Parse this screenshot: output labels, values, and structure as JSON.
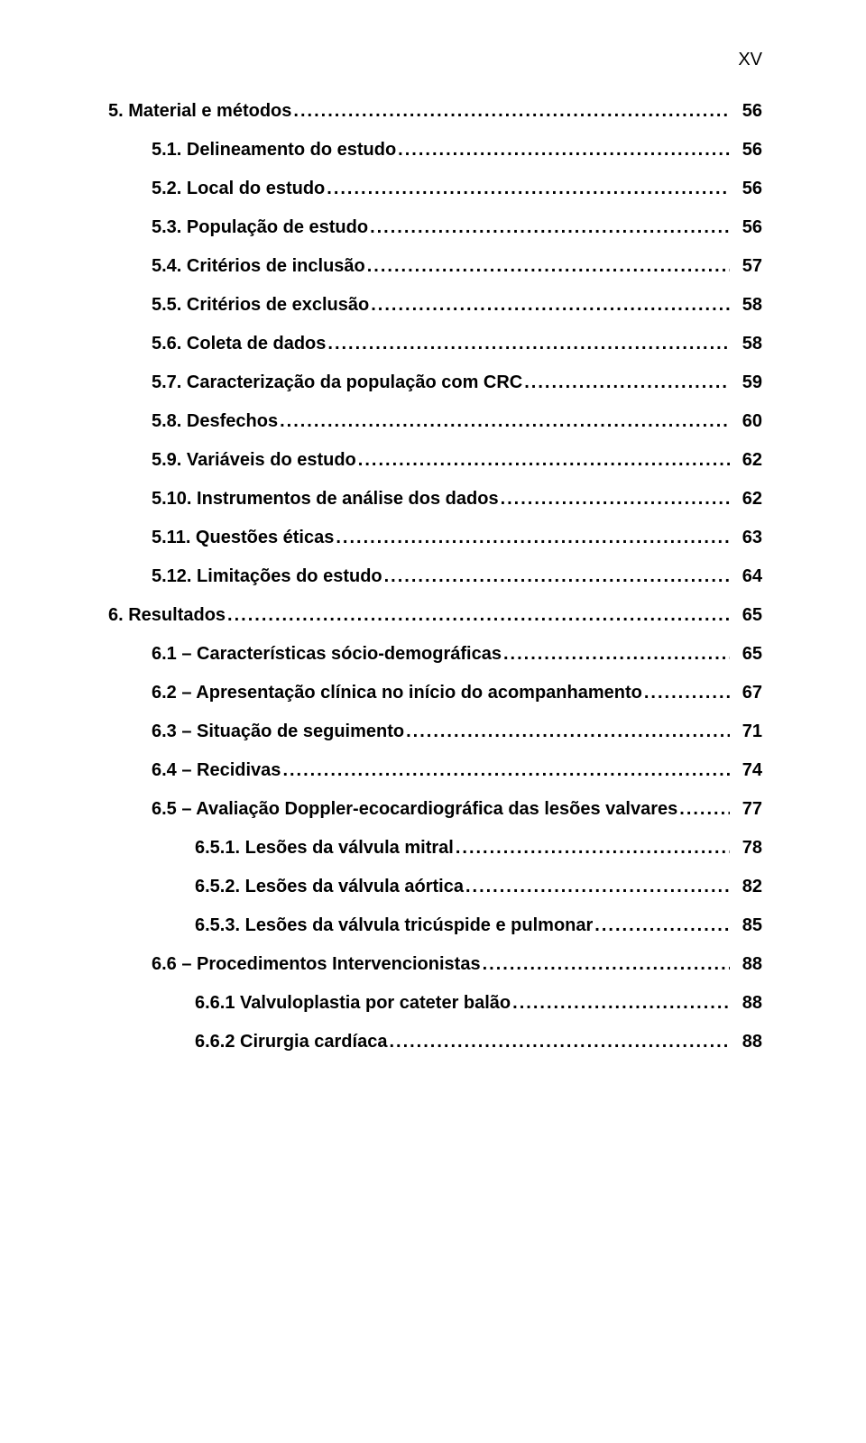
{
  "page_label": "XV",
  "typography": {
    "font_family": "Arial, Helvetica, sans-serif",
    "font_size_pt": 15,
    "font_weight": "bold",
    "color": "#000000",
    "background": "#ffffff"
  },
  "toc": [
    {
      "level": 0,
      "label": "5. Material e métodos",
      "page": "56"
    },
    {
      "level": 1,
      "label": "5.1. Delineamento do estudo",
      "page": "56"
    },
    {
      "level": 1,
      "label": "5.2. Local do estudo",
      "page": "56"
    },
    {
      "level": 1,
      "label": "5.3. População de estudo",
      "page": "56"
    },
    {
      "level": 1,
      "label": "5.4. Critérios de inclusão",
      "page": "57"
    },
    {
      "level": 1,
      "label": "5.5. Critérios de exclusão",
      "page": "58"
    },
    {
      "level": 1,
      "label": "5.6. Coleta de dados",
      "page": "58"
    },
    {
      "level": 1,
      "label": "5.7. Caracterização da população com CRC",
      "page": "59"
    },
    {
      "level": 1,
      "label": "5.8. Desfechos",
      "page": "60"
    },
    {
      "level": 1,
      "label": "5.9. Variáveis do estudo",
      "page": "62"
    },
    {
      "level": 1,
      "label": "5.10. Instrumentos de análise dos dados",
      "page": "62"
    },
    {
      "level": 1,
      "label": "5.11. Questões éticas",
      "page": "63"
    },
    {
      "level": 1,
      "label": "5.12. Limitações do estudo",
      "page": "64"
    },
    {
      "level": 0,
      "label": "6. Resultados",
      "page": "65"
    },
    {
      "level": 1,
      "label": "6.1 – Características sócio-demográficas",
      "page": "65"
    },
    {
      "level": 1,
      "label": "6.2 – Apresentação clínica no início do acompanhamento",
      "page": "67"
    },
    {
      "level": 1,
      "label": "6.3 – Situação de seguimento",
      "page": "71"
    },
    {
      "level": 1,
      "label": "6.4 – Recidivas",
      "page": "74"
    },
    {
      "level": 1,
      "label": "6.5 – Avaliação Doppler-ecocardiográfica das lesões valvares",
      "page": "77"
    },
    {
      "level": 2,
      "label": "6.5.1. Lesões da válvula mitral",
      "page": "78"
    },
    {
      "level": 2,
      "label": "6.5.2. Lesões da válvula aórtica",
      "page": "82"
    },
    {
      "level": 2,
      "label": "6.5.3. Lesões da válvula tricúspide e pulmonar",
      "page": "85"
    },
    {
      "level": 1,
      "label": "6.6 – Procedimentos Intervencionistas",
      "page": "88"
    },
    {
      "level": 2,
      "label": "6.6.1 Valvuloplastia por cateter balão",
      "page": "88"
    },
    {
      "level": 2,
      "label": "6.6.2 Cirurgia cardíaca",
      "page": "88"
    }
  ]
}
